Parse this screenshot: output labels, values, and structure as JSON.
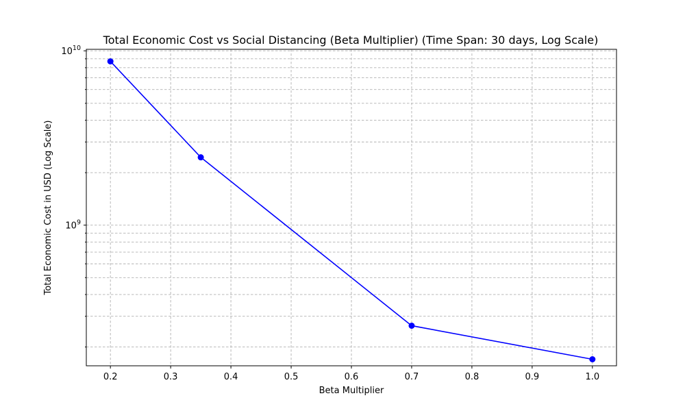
{
  "chart_data": {
    "type": "line",
    "title": "Total Economic Cost vs Social Distancing (Beta Multiplier) (Time Span: 30 days, Log Scale)",
    "xlabel": "Beta Multiplier",
    "ylabel": "Total Economic Cost in USD (Log Scale)",
    "x": [
      0.2,
      0.35,
      0.7,
      1.0
    ],
    "series": [
      {
        "values": [
          8700000000,
          2450000000,
          265000000,
          170000000
        ]
      }
    ],
    "xlim": [
      0.16,
      1.04
    ],
    "ylim": [
      156000000,
      10200000000
    ],
    "yscale": "log",
    "x_ticks": [
      "0.2",
      "0.3",
      "0.4",
      "0.5",
      "0.6",
      "0.7",
      "0.8",
      "0.9",
      "1.0"
    ],
    "x_tick_values": [
      0.2,
      0.3,
      0.4,
      0.5,
      0.6,
      0.7,
      0.8,
      0.9,
      1.0
    ],
    "y_major_ticks": [
      {
        "value": 1000000000,
        "base": "10",
        "exp": "9"
      },
      {
        "value": 10000000000,
        "base": "10",
        "exp": "10"
      }
    ],
    "grid": true,
    "line_color": "#0000ff",
    "grid_color": "#b0b0b0"
  }
}
